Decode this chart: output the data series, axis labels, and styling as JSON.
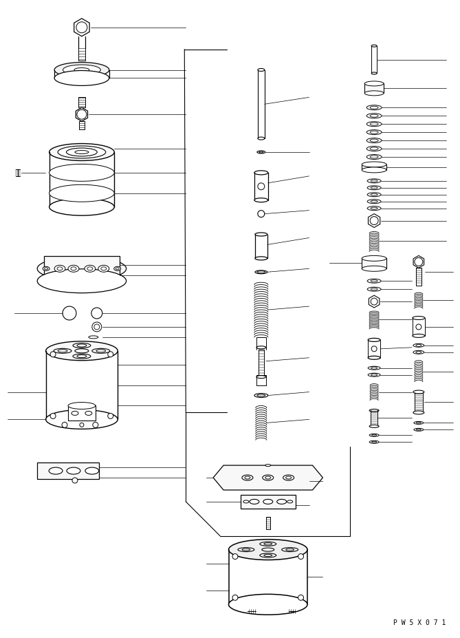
{
  "background_color": "#ffffff",
  "line_color": "#000000",
  "fig_width": 6.69,
  "fig_height": 9.27,
  "dpi": 100,
  "watermark": "P W 5 X 0 7 1"
}
